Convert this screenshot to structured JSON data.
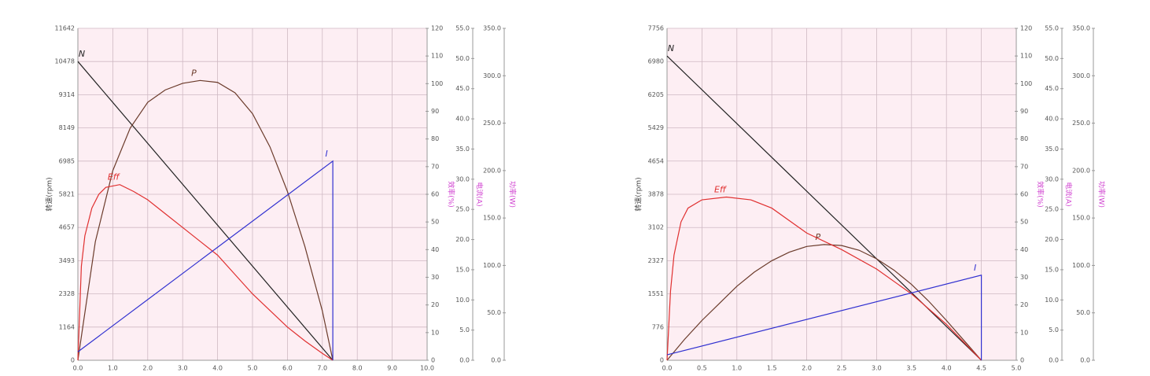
{
  "chart_data": [
    {
      "type": "line",
      "ylabel": "转速(rpm)",
      "y2label": "效率(%)",
      "y3label": "电流(A)",
      "y4label": "功率(W)",
      "xlim": [
        0,
        10
      ],
      "xticks": [
        {
          "value": 0,
          "label": "0.0"
        },
        {
          "value": 1,
          "label": "1.0"
        },
        {
          "value": 2,
          "label": "2.0"
        },
        {
          "value": 3,
          "label": "3.0"
        },
        {
          "value": 4,
          "label": "4.0"
        },
        {
          "value": 5,
          "label": "5.0"
        },
        {
          "value": 6,
          "label": "6.0"
        },
        {
          "value": 7,
          "label": "7.0"
        },
        {
          "value": 8,
          "label": "8.0"
        },
        {
          "value": 9,
          "label": "9.0"
        },
        {
          "value": 10,
          "label": "10.0"
        }
      ],
      "ylim": [
        0,
        11642
      ],
      "yticks": [
        0,
        1164,
        2328,
        3493,
        4657,
        5821,
        6985,
        8149,
        9314,
        10478,
        11642
      ],
      "y2lim": [
        0,
        120
      ],
      "y2ticks": [
        0,
        10,
        20,
        30,
        40,
        50,
        60,
        70,
        80,
        90,
        100,
        110,
        120
      ],
      "y3lim": [
        0,
        55
      ],
      "y3ticks": [
        {
          "value": 0,
          "label": "0.0"
        },
        {
          "value": 5,
          "label": "5.0"
        },
        {
          "value": 10,
          "label": "10.0"
        },
        {
          "value": 15,
          "label": "15.0"
        },
        {
          "value": 20,
          "label": "20.0"
        },
        {
          "value": 25,
          "label": "25.0"
        },
        {
          "value": 30,
          "label": "30.0"
        },
        {
          "value": 35,
          "label": "35.0"
        },
        {
          "value": 40,
          "label": "40.0"
        },
        {
          "value": 45,
          "label": "45.0"
        },
        {
          "value": 50,
          "label": "50.0"
        },
        {
          "value": 55,
          "label": "55.0"
        }
      ],
      "y4lim": [
        0,
        350
      ],
      "y4ticks": [
        {
          "value": 0,
          "label": "0.0"
        },
        {
          "value": 50,
          "label": "50.0"
        },
        {
          "value": 100,
          "label": "100.0"
        },
        {
          "value": 150,
          "label": "150.0"
        },
        {
          "value": 200,
          "label": "200.0"
        },
        {
          "value": 250,
          "label": "250.0"
        },
        {
          "value": 300,
          "label": "300.0"
        },
        {
          "value": 350,
          "label": "350.0"
        }
      ],
      "grid": true,
      "series": [
        {
          "name": "N",
          "color": "#222222",
          "axis": "y",
          "x": [
            0,
            7.3
          ],
          "values": [
            10478,
            0
          ]
        },
        {
          "name": "P",
          "color": "#6b3b2b",
          "axis": "y4",
          "x": [
            0,
            0.5,
            1,
            1.5,
            2,
            2.5,
            3,
            3.5,
            4,
            4.5,
            5,
            5.5,
            6,
            6.5,
            7,
            7.3
          ],
          "values": [
            0,
            125,
            200,
            245,
            272,
            285,
            292,
            295,
            293,
            282,
            260,
            225,
            178,
            120,
            52,
            0
          ]
        },
        {
          "name": "Eff",
          "color": "#e03030",
          "axis": "y2",
          "x": [
            0,
            0.1,
            0.2,
            0.4,
            0.6,
            0.8,
            1.2,
            1.6,
            2,
            2.5,
            3,
            3.5,
            4,
            4.5,
            5,
            5.5,
            6,
            6.5,
            7,
            7.3
          ],
          "values": [
            0,
            34,
            45,
            55,
            60,
            62.5,
            63.5,
            61,
            58,
            53,
            48,
            43,
            38,
            31,
            24,
            18,
            12,
            7,
            2.5,
            0
          ]
        },
        {
          "name": "I",
          "color": "#3030d0",
          "axis": "y3",
          "x": [
            0,
            7.3,
            7.3
          ],
          "values": [
            1.4,
            33,
            0
          ]
        }
      ]
    },
    {
      "type": "line",
      "ylabel": "转速(rpm)",
      "y2label": "效率(%)",
      "y3label": "电流(A)",
      "y4label": "功率(W)",
      "xlim": [
        0,
        5
      ],
      "xticks": [
        {
          "value": 0,
          "label": "0.0"
        },
        {
          "value": 0.5,
          "label": "0.5"
        },
        {
          "value": 1,
          "label": "1.0"
        },
        {
          "value": 1.5,
          "label": "1.5"
        },
        {
          "value": 2,
          "label": "2.0"
        },
        {
          "value": 2.5,
          "label": "2.5"
        },
        {
          "value": 3,
          "label": "3.0"
        },
        {
          "value": 3.5,
          "label": "3.5"
        },
        {
          "value": 4,
          "label": "4.0"
        },
        {
          "value": 4.5,
          "label": "4.5"
        },
        {
          "value": 5,
          "label": "5.0"
        }
      ],
      "ylim": [
        0,
        7756
      ],
      "yticks": [
        0,
        776,
        1551,
        2327,
        3102,
        3878,
        4654,
        5429,
        6205,
        6980,
        7756
      ],
      "y2lim": [
        0,
        120
      ],
      "y2ticks": [
        0,
        10,
        20,
        30,
        40,
        50,
        60,
        70,
        80,
        90,
        100,
        110,
        120
      ],
      "y3lim": [
        0,
        55
      ],
      "y3ticks": [
        {
          "value": 0,
          "label": "0.0"
        },
        {
          "value": 5,
          "label": "5.0"
        },
        {
          "value": 10,
          "label": "10.0"
        },
        {
          "value": 15,
          "label": "15.0"
        },
        {
          "value": 20,
          "label": "20.0"
        },
        {
          "value": 25,
          "label": "25.0"
        },
        {
          "value": 30,
          "label": "30.0"
        },
        {
          "value": 35,
          "label": "35.0"
        },
        {
          "value": 40,
          "label": "40.0"
        },
        {
          "value": 45,
          "label": "45.0"
        },
        {
          "value": 50,
          "label": "50.0"
        },
        {
          "value": 55,
          "label": "55.0"
        }
      ],
      "y4lim": [
        0,
        350
      ],
      "y4ticks": [
        {
          "value": 0,
          "label": "0.0"
        },
        {
          "value": 50,
          "label": "50.0"
        },
        {
          "value": 100,
          "label": "100.0"
        },
        {
          "value": 150,
          "label": "150.0"
        },
        {
          "value": 200,
          "label": "200.0"
        },
        {
          "value": 250,
          "label": "250.0"
        },
        {
          "value": 300,
          "label": "300.0"
        },
        {
          "value": 350,
          "label": "350.0"
        }
      ],
      "grid": true,
      "series": [
        {
          "name": "N",
          "color": "#222222",
          "axis": "y",
          "x": [
            0,
            4.5
          ],
          "values": [
            7110,
            0
          ]
        },
        {
          "name": "P",
          "color": "#6b3b2b",
          "axis": "y4",
          "x": [
            0,
            0.25,
            0.5,
            0.75,
            1,
            1.25,
            1.5,
            1.75,
            2,
            2.25,
            2.5,
            2.75,
            3,
            3.25,
            3.5,
            3.75,
            4,
            4.25,
            4.5
          ],
          "values": [
            0,
            22,
            42,
            60,
            78,
            93,
            105,
            114,
            120,
            122,
            121,
            116,
            107,
            95,
            80,
            62,
            42,
            21,
            0
          ]
        },
        {
          "name": "Eff",
          "color": "#e03030",
          "axis": "y2",
          "x": [
            0,
            0.05,
            0.1,
            0.2,
            0.3,
            0.5,
            0.85,
            1.2,
            1.5,
            2,
            2.5,
            3,
            3.5,
            4,
            4.5
          ],
          "values": [
            0,
            25,
            38,
            50,
            55,
            58,
            59,
            58,
            55,
            46,
            40,
            33,
            24,
            13,
            0
          ]
        },
        {
          "name": "I",
          "color": "#3030d0",
          "axis": "y3",
          "x": [
            0,
            4.5,
            4.5
          ],
          "values": [
            0.9,
            14.1,
            0
          ]
        }
      ]
    }
  ]
}
